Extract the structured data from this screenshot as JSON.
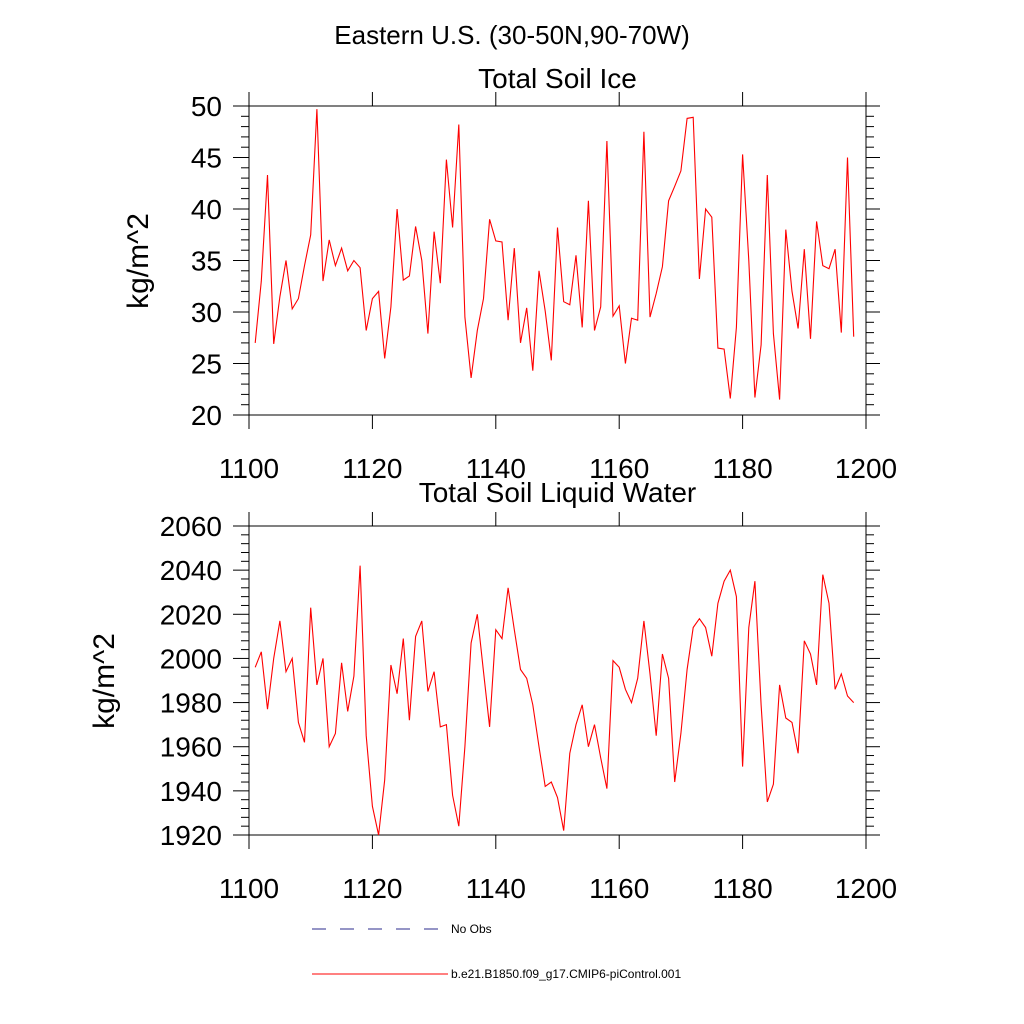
{
  "figure": {
    "title": "Eastern U.S. (30-50N,90-70W)"
  },
  "colors": {
    "series": "#ff0000",
    "obs": "#2b2b8c",
    "axis": "#000000"
  },
  "legend": {
    "placement": "bottom-center",
    "entries": [
      {
        "label": "No Obs",
        "style": "dashed",
        "color": "#2b2b8c"
      },
      {
        "label": "b.e21.B1850.f09_g17.CMIP6-piControl.001",
        "style": "solid",
        "color": "#ff0000"
      }
    ]
  },
  "chart_data": [
    {
      "type": "line",
      "title": "Total Soil Ice",
      "xlabel": "",
      "ylabel": "kg/m^2",
      "xlim": [
        1100,
        1200
      ],
      "ylim": [
        20,
        50
      ],
      "xticks": [
        1100,
        1120,
        1140,
        1160,
        1180,
        1200
      ],
      "yticks": [
        20,
        25,
        30,
        35,
        40,
        45,
        50
      ],
      "grid": false,
      "x_start": 1101,
      "series": [
        {
          "color": "#ff0000",
          "values": [
            27.0,
            33.0,
            43.3,
            26.9,
            31.5,
            35.0,
            30.3,
            31.3,
            34.5,
            37.5,
            49.7,
            33.0,
            37.0,
            34.5,
            36.2,
            34.0,
            35.0,
            34.3,
            28.2,
            31.3,
            32.0,
            25.5,
            30.5,
            40.0,
            33.1,
            33.5,
            38.3,
            35.0,
            27.9,
            37.8,
            32.8,
            44.8,
            38.2,
            48.2,
            29.5,
            23.6,
            28.2,
            31.3,
            39.0,
            36.9,
            36.8,
            29.2,
            36.2,
            27.0,
            30.4,
            24.3,
            34.0,
            30.1,
            25.3,
            38.2,
            31.0,
            30.7,
            35.5,
            28.5,
            40.8,
            28.2,
            30.5,
            46.6,
            29.6,
            30.6,
            25.0,
            29.4,
            29.2,
            47.5,
            29.5,
            31.8,
            34.4,
            40.8,
            42.2,
            43.7,
            48.8,
            48.9,
            33.2,
            40.0,
            39.2,
            26.5,
            26.4,
            21.6,
            28.5,
            45.3,
            35.0,
            21.7,
            26.8,
            43.3,
            27.9,
            21.5,
            38.0,
            32.0,
            28.4,
            36.1,
            27.4,
            38.8,
            34.5,
            34.2,
            36.1,
            28.0,
            45.0,
            27.6
          ]
        }
      ]
    },
    {
      "type": "line",
      "title": "Total Soil Liquid Water",
      "xlabel": "",
      "ylabel": "kg/m^2",
      "xlim": [
        1100,
        1200
      ],
      "ylim": [
        1920,
        2060
      ],
      "xticks": [
        1100,
        1120,
        1140,
        1160,
        1180,
        1200
      ],
      "yticks": [
        1920,
        1940,
        1960,
        1980,
        2000,
        2020,
        2040,
        2060
      ],
      "grid": false,
      "x_start": 1101,
      "series": [
        {
          "color": "#ff0000",
          "values": [
            1996,
            2003,
            1977,
            2000,
            2017,
            1994,
            2000,
            1971,
            1962,
            2023,
            1988,
            2000,
            1960,
            1966,
            1998,
            1976,
            1992,
            2042,
            1965,
            1933,
            1920,
            1945,
            1997,
            1984,
            2009,
            1972,
            2010,
            2017,
            1985,
            1994,
            1969,
            1970,
            1938,
            1924,
            1960,
            2007,
            2020,
            1994,
            1969,
            2013,
            2009,
            2032,
            2013,
            1995,
            1991,
            1979,
            1960,
            1942,
            1944,
            1937,
            1922,
            1957,
            1970,
            1979,
            1960,
            1970,
            1955,
            1941,
            1999,
            1996,
            1986,
            1980,
            1991,
            2017,
            1993,
            1965,
            2002,
            1991,
            1944,
            1966,
            1995,
            2014,
            2018,
            2014,
            2001,
            2025,
            2035,
            2040,
            2028,
            1951,
            2014,
            2035,
            1979,
            1935,
            1943,
            1988,
            1973,
            1971,
            1957,
            2008,
            2002,
            1988,
            2038,
            2025,
            1986,
            1993,
            1983,
            1980
          ]
        }
      ]
    }
  ]
}
